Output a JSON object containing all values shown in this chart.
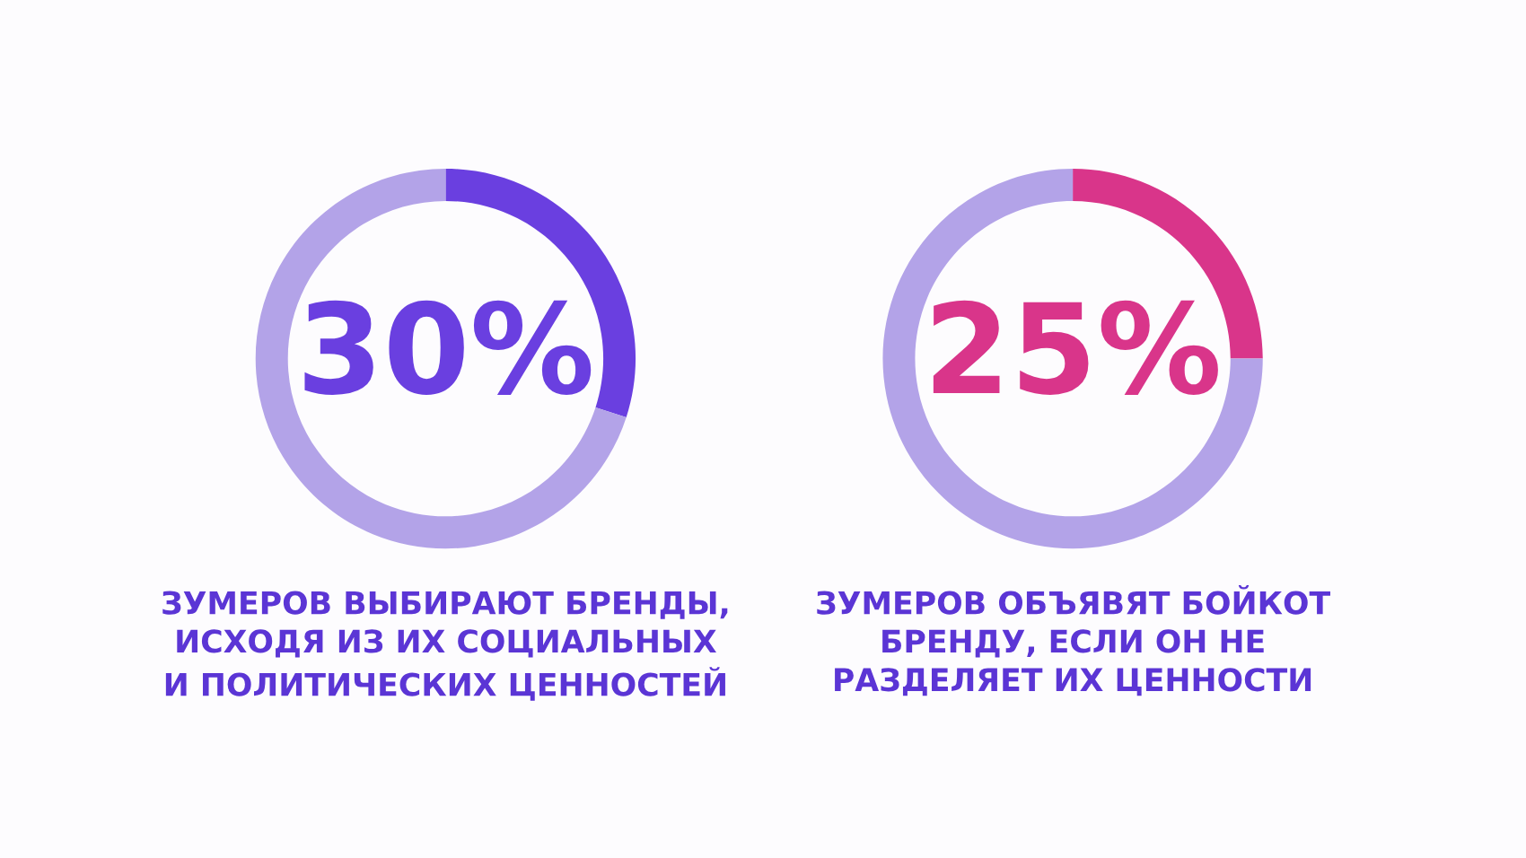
{
  "chart_data": [
    {
      "type": "donut",
      "title": "ЗУМЕРОВ ВЫБИРАЮТ БРЕНДЫ,\nИСХОДЯ ИЗ ИХ СОЦИАЛЬНЫХ\nИ ПОЛИТИЧЕСКИХ ЦЕННОСТЕЙ",
      "categories": [
        null,
        null
      ],
      "values": [
        30,
        70
      ],
      "colors": [
        "#6a3fe0",
        "#b3a3e8"
      ],
      "value_labels": [
        "30%",
        null
      ]
    },
    {
      "type": "donut",
      "title": "ЗУМЕРОВ ОБЪЯВЯТ БОЙКОТ\nБРЕНДУ, ЕСЛИ ОН НЕ\nРАЗДЕЛЯЕТ ИХ ЦЕННОСТИ",
      "categories": [
        null,
        null
      ],
      "values": [
        25,
        75
      ],
      "colors": [
        "#d9358a",
        "#b3a3e8"
      ],
      "value_labels": [
        "25%",
        null
      ]
    }
  ]
}
